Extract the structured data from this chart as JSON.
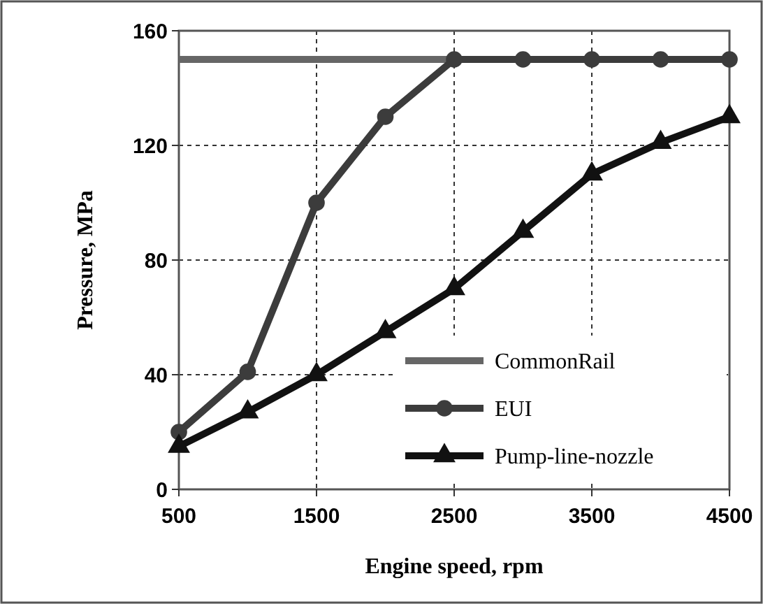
{
  "chart_data": {
    "type": "line",
    "xlabel": "Engine speed, rpm",
    "ylabel": "Pressure, MPa",
    "x": [
      500,
      1000,
      1500,
      2000,
      2500,
      3000,
      3500,
      4000,
      4500
    ],
    "xlim": [
      500,
      4500
    ],
    "xticks": [
      500,
      1500,
      2500,
      3500,
      4500
    ],
    "ylim": [
      0,
      160
    ],
    "yticks": [
      0,
      40,
      80,
      120,
      160
    ],
    "grid": true,
    "legend": "bottom right",
    "series": [
      {
        "name": "CommonRail",
        "color": "#666666",
        "marker": "none",
        "values": [
          150,
          150,
          150,
          150,
          150,
          150,
          150,
          150,
          150
        ]
      },
      {
        "name": "EUI",
        "color": "#3c3c3c",
        "marker": "circle",
        "values": [
          20,
          41,
          100,
          130,
          150,
          150,
          150,
          150,
          150
        ]
      },
      {
        "name": "Pump-line-nozzle",
        "color": "#111111",
        "marker": "triangle",
        "values": [
          15,
          27,
          40,
          55,
          70,
          90,
          110,
          121,
          130
        ]
      }
    ]
  }
}
